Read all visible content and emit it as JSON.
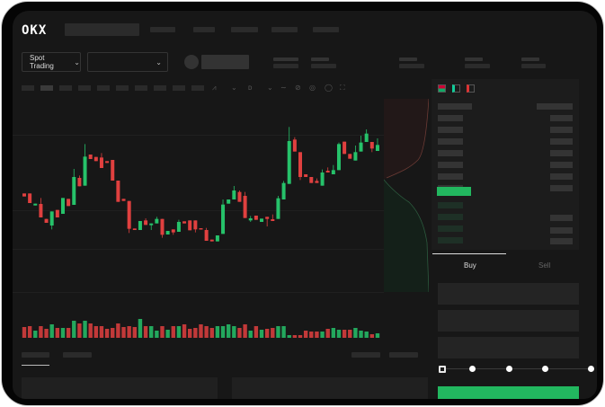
{
  "header": {
    "logo": "OKX"
  },
  "toolbar": {
    "market_type": "Spot Trading",
    "pair_select": ""
  },
  "trade_form": {
    "tabs": [
      {
        "label": "Buy",
        "active": true
      },
      {
        "label": "Sell",
        "active": false
      }
    ],
    "slider_percent": 0,
    "submit_color": "#22b75f"
  },
  "colors": {
    "up": "#26c26a",
    "down": "#e0403f",
    "accent": "#22b75f"
  },
  "icons": {
    "chevron": "chevron-down-icon",
    "orderbook_modes": [
      "orderbook-both-icon",
      "orderbook-buy-icon",
      "orderbook-sell-icon"
    ]
  },
  "chart_data": {
    "type": "candlestick",
    "candles": [
      [
        55,
        54
      ],
      [
        55,
        51.8
      ],
      [
        51,
        51.6
      ],
      [
        51.5,
        47,
        53.5
      ],
      [
        46.5,
        45.2
      ],
      [
        44.3,
        49,
        null,
        43
      ],
      [
        49.5,
        47
      ],
      [
        48.2,
        53.5
      ],
      [
        53.2,
        50.8
      ],
      [
        51.2,
        60.5,
        63.2
      ],
      [
        60.2,
        57.4,
        61
      ],
      [
        57.6,
        67.3,
        71.5
      ],
      [
        68,
        66.5
      ],
      [
        67.2,
        65.8
      ],
      [
        67,
        63.5,
        68.5
      ],
      [
        65.8,
        65.2
      ],
      [
        66.2,
        59.3
      ],
      [
        59.3,
        52.2
      ],
      [
        53.2,
        52.5
      ],
      [
        52.5,
        43.2,
        null,
        41.8
      ],
      [
        43.3,
        42.8
      ],
      [
        42.8,
        45.8
      ],
      [
        46,
        44.5,
        46.7
      ],
      [
        44.4,
        45,
        null,
        42.8
      ],
      [
        45,
        46.5,
        47.2
      ],
      [
        46.5,
        41.2,
        null,
        40.2
      ],
      [
        41.3,
        42.5
      ],
      [
        43,
        42,
        null,
        41.2
      ],
      [
        42.2,
        45.5,
        46.2
      ],
      [
        45.7,
        45
      ],
      [
        46,
        42.7
      ],
      [
        46,
        43,
        null,
        42
      ],
      [
        43.4,
        43
      ],
      [
        42.8,
        39.2,
        43.5
      ],
      [
        39.6,
        39
      ],
      [
        39,
        41
      ],
      [
        41.5,
        51.3,
        53
      ],
      [
        51.6,
        53
      ],
      [
        53,
        56,
        57.5
      ],
      [
        55.5,
        52.2,
        56
      ],
      [
        54.2,
        46.8,
        55.5
      ],
      [
        46,
        46.7,
        47.5,
        45.5
      ],
      [
        47.6,
        46.2
      ],
      [
        45.5,
        46.6
      ],
      [
        47.2,
        46.5,
        null,
        44
      ],
      [
        46.4,
        45.8,
        48
      ],
      [
        46.5,
        53.4,
        54.2
      ],
      [
        53,
        58.5,
        59.2
      ],
      [
        58.2,
        72.5,
        77.2
      ],
      [
        73,
        69,
        73.8
      ],
      [
        68.8,
        60.5,
        null,
        59.5
      ],
      [
        61.4,
        60.5
      ],
      [
        60.5,
        58.5
      ],
      [
        59.2,
        58.5,
        60
      ],
      [
        57.6,
        62,
        63
      ],
      [
        62.6,
        62,
        63.7
      ],
      [
        61.4,
        62.8,
        64.5
      ],
      [
        62.8,
        71.5,
        72
      ],
      [
        72.3,
        68.2
      ],
      [
        68.2,
        66.6
      ],
      [
        66,
        68.8,
        71
      ],
      [
        69,
        72,
        74.3
      ],
      [
        72.2,
        75,
        76.4
      ],
      [
        72.2,
        70,
        null,
        68.8
      ],
      [
        69.2,
        71.2,
        73.4
      ]
    ],
    "volume": [
      12,
      13,
      8,
      13,
      10,
      15,
      11,
      11,
      11,
      19,
      16,
      19,
      16,
      13,
      13,
      10,
      11,
      16,
      12,
      13,
      12,
      21,
      13,
      13,
      8,
      13,
      9,
      13,
      13,
      15,
      10,
      11,
      15,
      13,
      11,
      13,
      13,
      15,
      13,
      11,
      15,
      8,
      13,
      9,
      10,
      11,
      13,
      13,
      3,
      3,
      3,
      8,
      7,
      7,
      7,
      10,
      11,
      9,
      9,
      9,
      11,
      8,
      7,
      4,
      5
    ]
  }
}
